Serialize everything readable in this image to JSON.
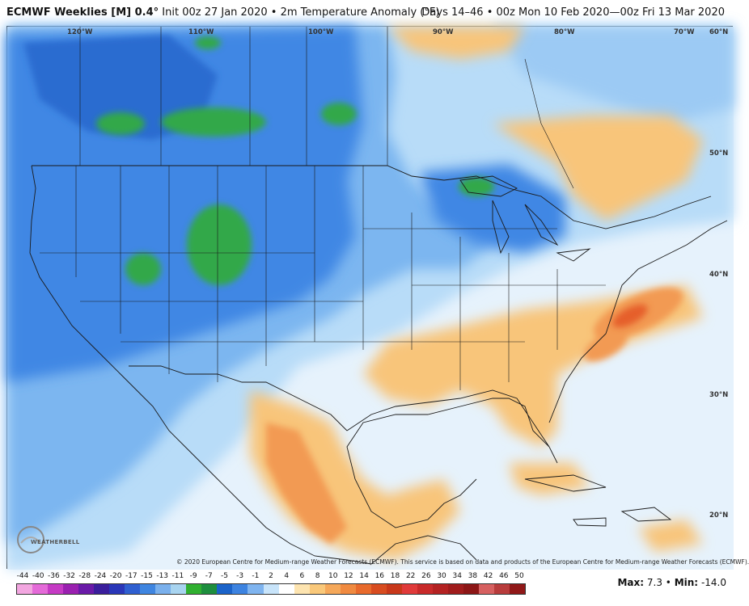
{
  "header": {
    "product": "ECMWF Weeklies [M] 0.4°",
    "init": "Init 00z 27 Jan 2020",
    "separator": "•",
    "field": "2m Temperature Anomaly (°F)",
    "valid": "Days 14–46 • 00z Mon 10 Feb 2020—00z Fri 13 Mar 2020"
  },
  "map": {
    "lon_labels": [
      "120°W",
      "110°W",
      "100°W",
      "90°W",
      "80°W",
      "70°W",
      "60°N"
    ],
    "lat_labels": [
      "50°N",
      "40°N",
      "30°N",
      "20°N"
    ],
    "copyright": "© 2020 European Centre for Medium-range Weather Forecasts (ECMWF). This service is based on data and products of the European Centre for Medium-range Weather Forecasts (ECMWF).",
    "logo_text": "WEATHERBELL",
    "colors": {
      "very_cold": "#2ca02c",
      "cold": "#1f77d4",
      "cool": "#6aa9f0",
      "slight_cool": "#a9d3f7",
      "warm": "#f9c87a",
      "warmer": "#f59b50",
      "hot": "#e8602c"
    }
  },
  "colorbar": {
    "labels": [
      "-44",
      "-40",
      "-36",
      "-32",
      "-28",
      "-24",
      "-20",
      "-17",
      "-15",
      "-13",
      "-11",
      "-9",
      "-7",
      "-5",
      "-3",
      "-1",
      "2",
      "4",
      "6",
      "8",
      "10",
      "12",
      "14",
      "16",
      "18",
      "22",
      "26",
      "30",
      "34",
      "38",
      "42",
      "46",
      "50"
    ],
    "colors": [
      "#f2a6e0",
      "#e46ad8",
      "#c53ac4",
      "#9a20b0",
      "#6a1aa8",
      "#3a1e9c",
      "#2a36b8",
      "#2f5fd0",
      "#3f85e0",
      "#7ab0ec",
      "#a8d4f0",
      "#30b030",
      "#1e8e3e",
      "#1b63c9",
      "#3d83e0",
      "#7fb4ef",
      "#c8e4fa",
      "#ffffff",
      "#fde4b0",
      "#f9c87a",
      "#f5a85a",
      "#f08a40",
      "#e86a2c",
      "#d84c20",
      "#c8381a",
      "#e03a3a",
      "#c82a2a",
      "#b42222",
      "#a01c1c",
      "#8c1616",
      "#d66060",
      "#b83c3c",
      "#901818"
    ]
  },
  "stats": {
    "max_label": "Max:",
    "max_value": "7.3",
    "sep": "•",
    "min_label": "Min:",
    "min_value": "-14.0"
  }
}
